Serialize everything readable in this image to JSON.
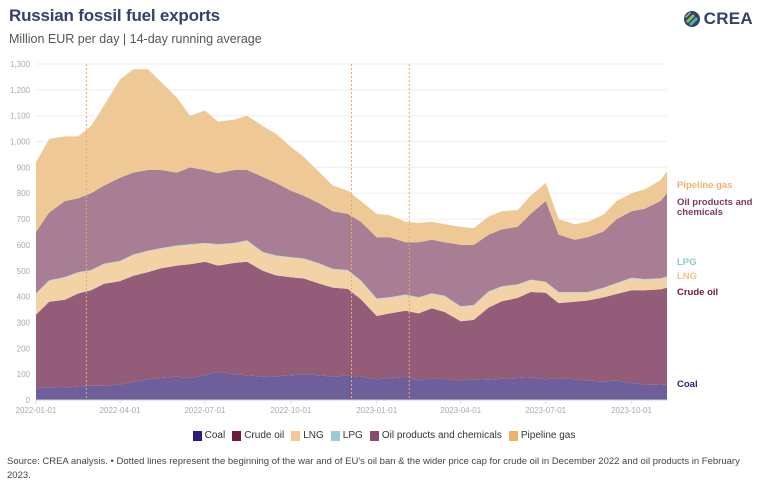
{
  "header": {
    "title": "Russian fossil fuel exports",
    "subtitle": "Million EUR per day | 14-day running average",
    "logo_text": "CREA"
  },
  "footnote": "Source: CREA analysis. • Dotted lines represent the beginning of the war and of EU's oil ban & the wider price cap for crude oil in December 2022 and oil products in February 2023.",
  "colors": {
    "coal": "#6e5f9b",
    "crude_oil": "#935c79",
    "lng": "#f3d2a6",
    "lpg": "#a9d3d8",
    "oil_products": "#a87e95",
    "pipeline_gas": "#efc995",
    "legend_coal": "#2e1a78",
    "legend_crude": "#6b1a3e",
    "legend_lng": "#f5c996",
    "legend_lpg": "#96cdd4",
    "legend_oil_products": "#8a4a70",
    "legend_pipeline": "#f0b26a",
    "title": "#35406b",
    "event_line": "#f0a870"
  },
  "chart_data": {
    "type": "area",
    "stacked": true,
    "title": "Russian fossil fuel exports",
    "subtitle": "Million EUR per day | 14-day running average",
    "xlabel": "",
    "ylabel": "Million EUR per day",
    "ylim": [
      0,
      1300
    ],
    "xlim": [
      "2022-01-01",
      "2023-11-08"
    ],
    "grid": true,
    "legend_position": "bottom",
    "y_ticks": [
      "0",
      "100",
      "200",
      "300",
      "400",
      "500",
      "600",
      "700",
      "800",
      "900",
      "1,000",
      "1,100",
      "1,200",
      "1,300"
    ],
    "x_ticks": [
      "2022-01-01",
      "2022-04-01",
      "2022-07-01",
      "2022-10-01",
      "2023-01-01",
      "2023-04-01",
      "2023-07-01",
      "2023-10-01"
    ],
    "event_lines": [
      "2022-02-24",
      "2022-12-05",
      "2023-02-05"
    ],
    "x": [
      "2022-01-01",
      "2022-01-15",
      "2022-02-01",
      "2022-02-15",
      "2022-03-01",
      "2022-03-15",
      "2022-04-01",
      "2022-04-15",
      "2022-05-01",
      "2022-05-15",
      "2022-06-01",
      "2022-06-15",
      "2022-07-01",
      "2022-07-15",
      "2022-08-01",
      "2022-08-15",
      "2022-09-01",
      "2022-09-15",
      "2022-10-01",
      "2022-10-15",
      "2022-11-01",
      "2022-11-15",
      "2022-12-01",
      "2022-12-15",
      "2023-01-01",
      "2023-01-15",
      "2023-02-01",
      "2023-02-15",
      "2023-03-01",
      "2023-03-15",
      "2023-04-01",
      "2023-04-15",
      "2023-05-01",
      "2023-05-15",
      "2023-06-01",
      "2023-06-15",
      "2023-07-01",
      "2023-07-15",
      "2023-08-01",
      "2023-08-15",
      "2023-09-01",
      "2023-09-15",
      "2023-10-01",
      "2023-10-15",
      "2023-11-01",
      "2023-11-08"
    ],
    "series": [
      {
        "name": "Coal",
        "values": [
          45,
          50,
          48,
          52,
          55,
          55,
          60,
          70,
          80,
          85,
          90,
          85,
          95,
          110,
          100,
          95,
          90,
          92,
          95,
          100,
          95,
          90,
          95,
          90,
          80,
          85,
          90,
          75,
          85,
          80,
          75,
          80,
          78,
          82,
          85,
          88,
          80,
          85,
          80,
          75,
          72,
          75,
          65,
          60,
          58,
          60
        ]
      },
      {
        "name": "Crude oil",
        "values": [
          285,
          330,
          340,
          360,
          370,
          395,
          400,
          410,
          415,
          425,
          430,
          440,
          440,
          410,
          430,
          440,
          410,
          390,
          380,
          370,
          355,
          345,
          335,
          300,
          245,
          250,
          255,
          260,
          270,
          260,
          230,
          230,
          280,
          300,
          310,
          330,
          335,
          290,
          300,
          310,
          325,
          335,
          360,
          365,
          370,
          375
        ]
      },
      {
        "name": "LNG",
        "values": [
          80,
          80,
          85,
          80,
          75,
          75,
          75,
          80,
          80,
          75,
          75,
          75,
          70,
          80,
          75,
          80,
          70,
          75,
          75,
          75,
          75,
          70,
          70,
          70,
          65,
          60,
          60,
          60,
          55,
          60,
          55,
          55,
          60,
          55,
          50,
          45,
          40,
          40,
          35,
          30,
          35,
          40,
          45,
          40,
          40,
          40
        ]
      },
      {
        "name": "LPG",
        "values": [
          3,
          3,
          3,
          3,
          3,
          3,
          3,
          3,
          3,
          3,
          3,
          3,
          3,
          3,
          3,
          3,
          3,
          3,
          3,
          3,
          3,
          3,
          3,
          3,
          3,
          3,
          3,
          3,
          3,
          3,
          3,
          3,
          3,
          3,
          3,
          3,
          3,
          3,
          3,
          3,
          3,
          3,
          3,
          3,
          3,
          3
        ]
      },
      {
        "name": "Oil products and chemicals",
        "values": [
          237,
          262,
          294,
          285,
          297,
          302,
          322,
          317,
          312,
          302,
          282,
          297,
          282,
          274,
          282,
          272,
          290,
          280,
          257,
          242,
          232,
          222,
          217,
          227,
          237,
          232,
          202,
          212,
          207,
          207,
          237,
          232,
          219,
          220,
          222,
          254,
          312,
          222,
          202,
          212,
          217,
          247,
          257,
          272,
          299,
          322
        ]
      },
      {
        "name": "Pipeline gas",
        "values": [
          270,
          285,
          250,
          240,
          260,
          310,
          380,
          400,
          390,
          340,
          290,
          200,
          230,
          200,
          195,
          210,
          197,
          190,
          170,
          150,
          120,
          100,
          90,
          80,
          90,
          85,
          80,
          75,
          70,
          70,
          70,
          65,
          70,
          70,
          65,
          70,
          70,
          60,
          60,
          60,
          65,
          70,
          70,
          75,
          80,
          85
        ]
      }
    ]
  },
  "direct_labels": [
    {
      "series": "Pipeline gas",
      "text": "Pipeline gas"
    },
    {
      "series": "Oil products and chemicals",
      "text": "Oil products and\nchemicals"
    },
    {
      "series": "LPG",
      "text": "LPG"
    },
    {
      "series": "LNG",
      "text": "LNG"
    },
    {
      "series": "Crude oil",
      "text": "Crude oil"
    },
    {
      "series": "Coal",
      "text": "Coal"
    }
  ],
  "legend": [
    {
      "label": "Coal",
      "color_key": "legend_coal"
    },
    {
      "label": "Crude oil",
      "color_key": "legend_crude"
    },
    {
      "label": "LNG",
      "color_key": "legend_lng"
    },
    {
      "label": "LPG",
      "color_key": "legend_lpg"
    },
    {
      "label": "Oil products and chemicals",
      "color_key": "legend_oil_products"
    },
    {
      "label": "Pipeline gas",
      "color_key": "legend_pipeline"
    }
  ]
}
